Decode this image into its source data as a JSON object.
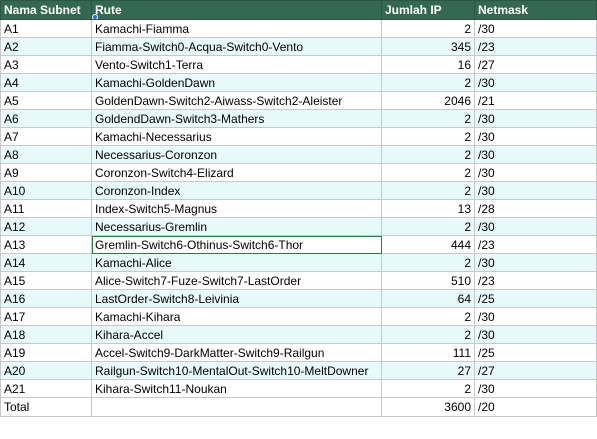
{
  "headers": {
    "subnet": "Nama Subnet",
    "route": "Rute",
    "ip_count": "Jumlah IP",
    "netmask": "Netmask"
  },
  "rows": [
    {
      "subnet": "A1",
      "route": "Kamachi-Fiamma",
      "ip": "2",
      "mask": "/30"
    },
    {
      "subnet": "A2",
      "route": "Fiamma-Switch0-Acqua-Switch0-Vento",
      "ip": "345",
      "mask": "/23"
    },
    {
      "subnet": "A3",
      "route": "Vento-Switch1-Terra",
      "ip": "16",
      "mask": "/27"
    },
    {
      "subnet": "A4",
      "route": "Kamachi-GoldenDawn",
      "ip": "2",
      "mask": "/30"
    },
    {
      "subnet": "A5",
      "route": "GoldenDawn-Switch2-Aiwass-Switch2-Aleister",
      "ip": "2046",
      "mask": "/21"
    },
    {
      "subnet": "A6",
      "route": "GoldendDawn-Switch3-Mathers",
      "ip": "2",
      "mask": "/30"
    },
    {
      "subnet": "A7",
      "route": "Kamachi-Necessarius",
      "ip": "2",
      "mask": "/30"
    },
    {
      "subnet": "A8",
      "route": "Necessarius-Coronzon",
      "ip": "2",
      "mask": "/30"
    },
    {
      "subnet": "A9",
      "route": "Coronzon-Switch4-Elizard",
      "ip": "2",
      "mask": "/30"
    },
    {
      "subnet": "A10",
      "route": "Coronzon-Index",
      "ip": "2",
      "mask": "/30"
    },
    {
      "subnet": "A11",
      "route": "Index-Switch5-Magnus",
      "ip": "13",
      "mask": "/28"
    },
    {
      "subnet": "A12",
      "route": "Necessarius-Gremlin",
      "ip": "2",
      "mask": "/30"
    },
    {
      "subnet": "A13",
      "route": "Gremlin-Switch6-Othinus-Switch6-Thor",
      "ip": "444",
      "mask": "/23"
    },
    {
      "subnet": "A14",
      "route": "Kamachi-Alice",
      "ip": "2",
      "mask": "/30"
    },
    {
      "subnet": "A15",
      "route": "Alice-Switch7-Fuze-Switch7-LastOrder",
      "ip": "510",
      "mask": "/23"
    },
    {
      "subnet": "A16",
      "route": "LastOrder-Switch8-Leivinia",
      "ip": "64",
      "mask": "/25"
    },
    {
      "subnet": "A17",
      "route": "Kamachi-Kihara",
      "ip": "2",
      "mask": "/30"
    },
    {
      "subnet": "A18",
      "route": "Kihara-Accel",
      "ip": "2",
      "mask": "/30"
    },
    {
      "subnet": "A19",
      "route": "Accel-Switch9-DarkMatter-Switch9-Railgun",
      "ip": "111",
      "mask": "/25"
    },
    {
      "subnet": "A20",
      "route": "Railgun-Switch10-MentalOut-Switch10-MeltDowner",
      "ip": "27",
      "mask": "/27"
    },
    {
      "subnet": "A21",
      "route": "Kihara-Switch11-Noukan",
      "ip": "2",
      "mask": "/30"
    }
  ],
  "total": {
    "label": "Total",
    "ip": "3600",
    "mask": "/20"
  },
  "colors": {
    "header_bg": "#356853",
    "band": "#e7f9fb",
    "selection_handle": "#1a73e8"
  }
}
